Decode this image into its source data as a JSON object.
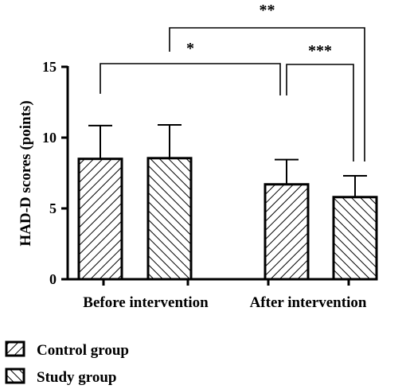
{
  "chart_data": {
    "type": "bar",
    "ylabel": "HAD-D scores (points)",
    "xlabel": "",
    "ylim": [
      0,
      15
    ],
    "yticks": [
      "0",
      "5",
      "10",
      "15"
    ],
    "categories": [
      "Before intervention",
      "After intervention"
    ],
    "series": [
      {
        "name": "Control group",
        "values": [
          8.5,
          6.7
        ],
        "errors": [
          2.35,
          1.75
        ],
        "pattern": "forward-hatch"
      },
      {
        "name": "Study group",
        "values": [
          8.55,
          5.8
        ],
        "errors": [
          2.35,
          1.5
        ],
        "pattern": "back-hatch"
      }
    ],
    "significance": [
      {
        "label": "*",
        "from": "Control group / Before intervention",
        "to": "Control group / After intervention"
      },
      {
        "label": "***",
        "from": "Control group / After intervention",
        "to": "Study group / After intervention"
      },
      {
        "label": "**",
        "from": "Study group / Before intervention",
        "to": "Study group / After intervention"
      }
    ],
    "grid": false,
    "legend_position": "bottom-left"
  }
}
